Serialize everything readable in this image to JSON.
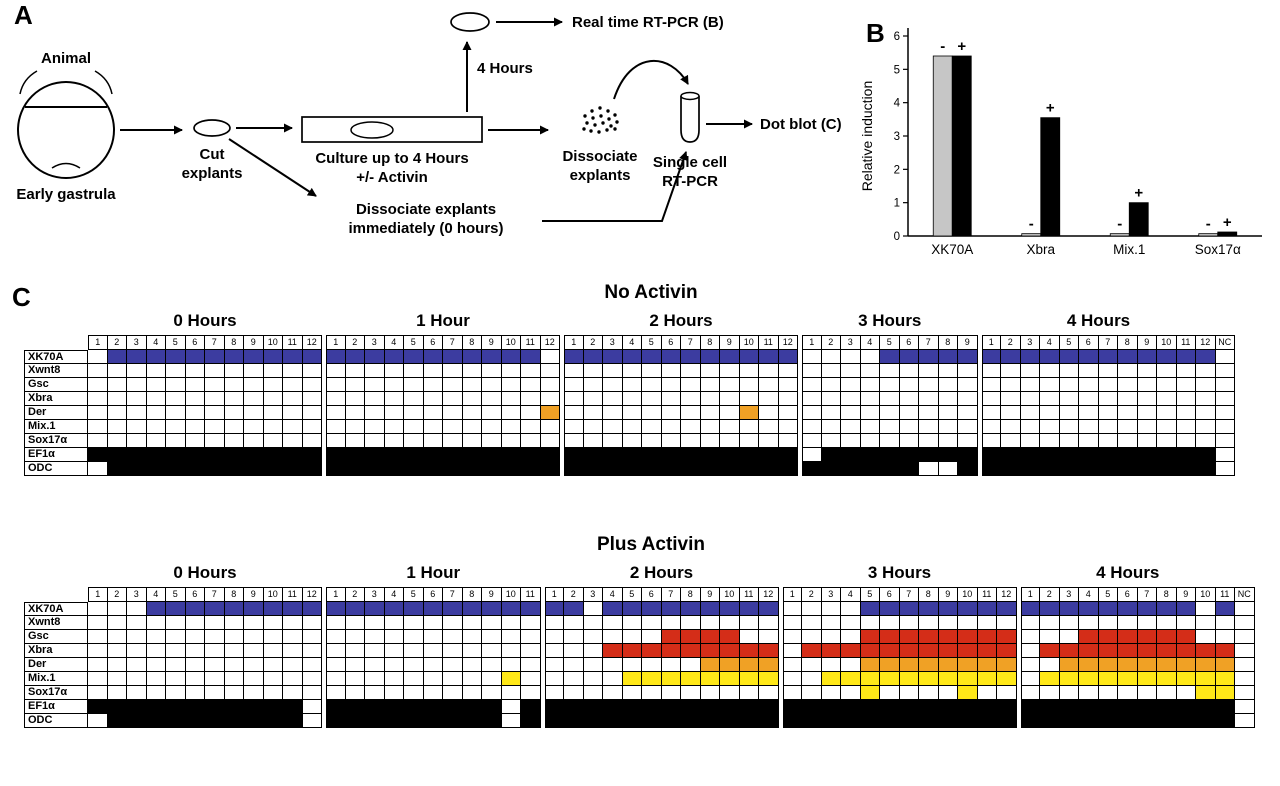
{
  "cell_colors": {
    "w": "#ffffff",
    "b": "#3c3ca0",
    "k": "#000000",
    "o": "#f0a125",
    "r": "#d42d18",
    "y": "#ffe818"
  },
  "panelA": {
    "label": "A",
    "labels": {
      "animal": "Animal",
      "early_gastrula": "Early gastrula",
      "cut_explants": "Cut\nexplants",
      "culture": "Culture up to 4 Hours\n+/- Activin",
      "four_hours": "4 Hours",
      "realtime_rtpcr": "Real time RT-PCR (B)",
      "dissociate_explants": "Dissociate\nexplants",
      "single_cell_rtpcr": "Single cell\nRT-PCR",
      "dot_blot": "Dot blot (C)",
      "dissociate_immediately": "Dissociate explants\nimmediately (0 hours)"
    }
  },
  "panelB": {
    "label": "B",
    "chart_data": {
      "type": "bar",
      "categories": [
        "XK70A",
        "Xbra",
        "Mix.1",
        "Sox17α"
      ],
      "series": [
        {
          "name": "-",
          "color": "#c6c6c6",
          "values": [
            5.4,
            0.07,
            0.07,
            0.07
          ]
        },
        {
          "name": "+",
          "color": "#000000",
          "values": [
            5.4,
            3.55,
            1.0,
            0.12
          ]
        }
      ],
      "ylabel": "Relative induction",
      "ylim": [
        0,
        6
      ],
      "yticks": [
        0,
        1,
        2,
        3,
        4,
        5,
        6
      ]
    }
  },
  "panelC": {
    "label": "C",
    "blots": [
      {
        "title": "No Activin",
        "groups": [
          {
            "label": "0 Hours",
            "cols": 12
          },
          {
            "label": "1 Hour",
            "cols": 12
          },
          {
            "label": "2 Hours",
            "cols": 12
          },
          {
            "label": "3 Hours",
            "cols": 9
          },
          {
            "label": "4 Hours",
            "cols": 12
          },
          {
            "label": "",
            "cols": 1,
            "headers": [
              "NC"
            ],
            "attached": true
          }
        ],
        "rows": [
          {
            "label": "XK70A",
            "cells": [
              "wbbbbbbbbbbb",
              "bbbbbbbbbbbw",
              "bbbbbbbbbbbb",
              "wwwwbbbbb",
              "bbbbbbbbbbbb",
              "w"
            ]
          },
          {
            "label": "Xwnt8",
            "cells": [
              "wwwwwwwwwwww",
              "wwwwwwwwwwww",
              "wwwwwwwwwwww",
              "wwwwwwwww",
              "wwwwwwwwwwww",
              "w"
            ]
          },
          {
            "label": "Gsc",
            "cells": [
              "wwwwwwwwwwww",
              "wwwwwwwwwwww",
              "wwwwwwwwwwww",
              "wwwwwwwww",
              "wwwwwwwwwwww",
              "w"
            ]
          },
          {
            "label": "Xbra",
            "cells": [
              "wwwwwwwwwwww",
              "wwwwwwwwwwww",
              "wwwwwwwwwwww",
              "wwwwwwwww",
              "wwwwwwwwwwww",
              "w"
            ]
          },
          {
            "label": "Der",
            "cells": [
              "wwwwwwwwwwww",
              "wwwwwwwwwwwo",
              "wwwwwwwwwoww",
              "wwwwwwwww",
              "wwwwwwwwwwww",
              "w"
            ]
          },
          {
            "label": "Mix.1",
            "cells": [
              "wwwwwwwwwwww",
              "wwwwwwwwwwww",
              "wwwwwwwwwwww",
              "wwwwwwwww",
              "wwwwwwwwwwww",
              "w"
            ]
          },
          {
            "label": "Sox17α",
            "cells": [
              "wwwwwwwwwwww",
              "wwwwwwwwwwww",
              "wwwwwwwwwwww",
              "wwwwwwwww",
              "wwwwwwwwwwww",
              "w"
            ]
          },
          {
            "label": "EF1α",
            "cells": [
              "kkkkkkkkkkkk",
              "kkkkkkkkkkkk",
              "kkkkkkkkkkkk",
              "wkkkkkkkk",
              "kkkkkkkkkkkk",
              "w"
            ]
          },
          {
            "label": "ODC",
            "cells": [
              "wkkkkkkkkkkk",
              "kkkkkkkkkkkk",
              "kkkkkkkkkkkk",
              "kkkkkkwwk",
              "kkkkkkkkkkkk",
              "w"
            ]
          }
        ]
      },
      {
        "title": "Plus Activin",
        "groups": [
          {
            "label": "0 Hours",
            "cols": 12
          },
          {
            "label": "1 Hour",
            "cols": 11
          },
          {
            "label": "2 Hours",
            "cols": 12
          },
          {
            "label": "3 Hours",
            "cols": 12
          },
          {
            "label": "4 Hours",
            "cols": 11
          },
          {
            "label": "",
            "cols": 1,
            "headers": [
              "NC"
            ],
            "attached": true
          }
        ],
        "rows": [
          {
            "label": "XK70A",
            "cells": [
              "wwwbbbbbbbbb",
              "bbbbbbbbbbb",
              "bbwbbbbbbbbb",
              "wwwwbbbbbbbb",
              "bbbbbbbbbwb",
              "w"
            ]
          },
          {
            "label": "Xwnt8",
            "cells": [
              "wwwwwwwwwwww",
              "wwwwwwwwwww",
              "wwwwwwwwwwww",
              "wwwwwwwwwwww",
              "wwwwwwwwwww",
              "w"
            ]
          },
          {
            "label": "Gsc",
            "cells": [
              "wwwwwwwwwwww",
              "wwwwwwwwwww",
              "wwwwwwrrrrww",
              "wwwwrrrrrrrr",
              "wwwrrrrrrww",
              "w"
            ]
          },
          {
            "label": "Xbra",
            "cells": [
              "wwwwwwwwwwww",
              "wwwwwwwwwww",
              "wwwrrrrrrrrr",
              "wrrrrrrrrrrr",
              "wrrrrrrrrrr",
              "w"
            ]
          },
          {
            "label": "Der",
            "cells": [
              "wwwwwwwwwwww",
              "wwwwwwwwwww",
              "wwwwwwwwoooo",
              "wwwwoooooooo",
              "wwooooooooo",
              "w"
            ]
          },
          {
            "label": "Mix.1",
            "cells": [
              "wwwwwwwwwwww",
              "wwwwwwwwwyw",
              "wwwwyyyyyyyy",
              "wwyyyyyyyyyy",
              "wyyyyyyyyyy",
              "w"
            ]
          },
          {
            "label": "Sox17α",
            "cells": [
              "wwwwwwwwwwww",
              "wwwwwwwwwww",
              "wwwwwwwwwwww",
              "wwwwywwwwyww",
              "wwwwwwwwwyy",
              "w"
            ]
          },
          {
            "label": "EF1α",
            "cells": [
              "kkkkkkkkkkkw",
              "kkkkkkkkkwk",
              "kkkkkkkkkkkk",
              "kkkkkkkkkkkk",
              "kkkkkkkkkkk",
              "w"
            ]
          },
          {
            "label": "ODC",
            "cells": [
              "wkkkkkkkkkkw",
              "kkkkkkkkkwk",
              "kkkkkkkkkkkk",
              "kkkkkkkkkkkk",
              "kkkkkkkkkkk",
              "w"
            ]
          }
        ]
      }
    ]
  }
}
